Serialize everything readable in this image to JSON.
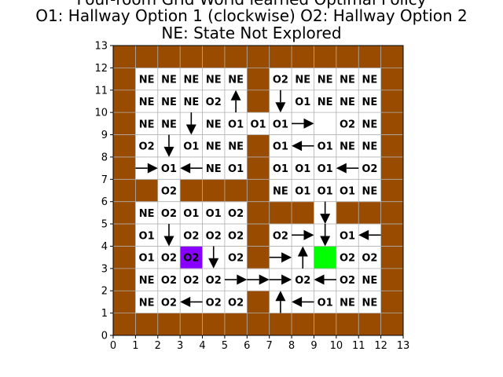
{
  "title_lines": [
    "Four-room Grid World learned Optimal Policy",
    "O1: Hallway Option 1 (clockwise) O2: Hallway Option 2",
    "NE: State Not Explored"
  ],
  "chart_data": {
    "type": "heatmap",
    "xlim": [
      0,
      13
    ],
    "ylim": [
      0,
      13
    ],
    "xticks": [
      "0",
      "1",
      "2",
      "3",
      "4",
      "5",
      "6",
      "7",
      "8",
      "9",
      "10",
      "11",
      "12",
      "13"
    ],
    "yticks": [
      "0",
      "1",
      "2",
      "3",
      "4",
      "5",
      "6",
      "7",
      "8",
      "9",
      "10",
      "11",
      "12",
      "13"
    ],
    "colors": {
      "wall": "#994c00",
      "agent": "#8800ff",
      "goal": "#00ff00",
      "grid": "#b0b0b0",
      "open": "#ffffff"
    },
    "walls": [
      [
        0,
        12
      ],
      [
        1,
        12
      ],
      [
        2,
        12
      ],
      [
        3,
        12
      ],
      [
        4,
        12
      ],
      [
        5,
        12
      ],
      [
        6,
        12
      ],
      [
        7,
        12
      ],
      [
        8,
        12
      ],
      [
        9,
        12
      ],
      [
        10,
        12
      ],
      [
        11,
        12
      ],
      [
        12,
        12
      ],
      [
        0,
        0
      ],
      [
        1,
        0
      ],
      [
        2,
        0
      ],
      [
        3,
        0
      ],
      [
        4,
        0
      ],
      [
        5,
        0
      ],
      [
        6,
        0
      ],
      [
        7,
        0
      ],
      [
        8,
        0
      ],
      [
        9,
        0
      ],
      [
        10,
        0
      ],
      [
        11,
        0
      ],
      [
        12,
        0
      ],
      [
        0,
        1
      ],
      [
        0,
        2
      ],
      [
        0,
        3
      ],
      [
        0,
        4
      ],
      [
        0,
        5
      ],
      [
        0,
        6
      ],
      [
        0,
        7
      ],
      [
        0,
        8
      ],
      [
        0,
        9
      ],
      [
        0,
        10
      ],
      [
        0,
        11
      ],
      [
        12,
        1
      ],
      [
        12,
        2
      ],
      [
        12,
        3
      ],
      [
        12,
        4
      ],
      [
        12,
        5
      ],
      [
        12,
        6
      ],
      [
        12,
        7
      ],
      [
        12,
        8
      ],
      [
        12,
        9
      ],
      [
        12,
        10
      ],
      [
        12,
        11
      ],
      [
        6,
        11
      ],
      [
        6,
        10
      ],
      [
        6,
        8
      ],
      [
        6,
        7
      ],
      [
        6,
        6
      ],
      [
        6,
        5
      ],
      [
        6,
        4
      ],
      [
        6,
        3
      ],
      [
        6,
        1
      ],
      [
        1,
        6
      ],
      [
        3,
        6
      ],
      [
        4,
        6
      ],
      [
        5,
        6
      ],
      [
        7,
        5
      ],
      [
        8,
        5
      ],
      [
        10,
        5
      ],
      [
        11,
        5
      ]
    ],
    "agent": [
      3,
      3
    ],
    "goal": [
      9,
      3
    ],
    "labels": [
      {
        "c": 1,
        "r": 11,
        "t": "NE"
      },
      {
        "c": 2,
        "r": 11,
        "t": "NE"
      },
      {
        "c": 3,
        "r": 11,
        "t": "NE"
      },
      {
        "c": 4,
        "r": 11,
        "t": "NE"
      },
      {
        "c": 5,
        "r": 11,
        "t": "NE"
      },
      {
        "c": 7,
        "r": 11,
        "t": "O2"
      },
      {
        "c": 8,
        "r": 11,
        "t": "NE"
      },
      {
        "c": 9,
        "r": 11,
        "t": "NE"
      },
      {
        "c": 10,
        "r": 11,
        "t": "NE"
      },
      {
        "c": 11,
        "r": 11,
        "t": "NE"
      },
      {
        "c": 1,
        "r": 10,
        "t": "NE"
      },
      {
        "c": 2,
        "r": 10,
        "t": "NE"
      },
      {
        "c": 3,
        "r": 10,
        "t": "NE"
      },
      {
        "c": 4,
        "r": 10,
        "t": "O2"
      },
      {
        "c": 8,
        "r": 10,
        "t": "O1"
      },
      {
        "c": 9,
        "r": 10,
        "t": "NE"
      },
      {
        "c": 10,
        "r": 10,
        "t": "NE"
      },
      {
        "c": 11,
        "r": 10,
        "t": "NE"
      },
      {
        "c": 1,
        "r": 9,
        "t": "NE"
      },
      {
        "c": 2,
        "r": 9,
        "t": "NE"
      },
      {
        "c": 4,
        "r": 9,
        "t": "NE"
      },
      {
        "c": 5,
        "r": 9,
        "t": "O1"
      },
      {
        "c": 6,
        "r": 9,
        "t": "O1"
      },
      {
        "c": 7,
        "r": 9,
        "t": "O1"
      },
      {
        "c": 10,
        "r": 9,
        "t": "O2"
      },
      {
        "c": 11,
        "r": 9,
        "t": "NE"
      },
      {
        "c": 1,
        "r": 8,
        "t": "O2"
      },
      {
        "c": 3,
        "r": 8,
        "t": "O1"
      },
      {
        "c": 4,
        "r": 8,
        "t": "NE"
      },
      {
        "c": 5,
        "r": 8,
        "t": "NE"
      },
      {
        "c": 7,
        "r": 8,
        "t": "O1"
      },
      {
        "c": 9,
        "r": 8,
        "t": "O1"
      },
      {
        "c": 10,
        "r": 8,
        "t": "NE"
      },
      {
        "c": 11,
        "r": 8,
        "t": "NE"
      },
      {
        "c": 2,
        "r": 7,
        "t": "O1"
      },
      {
        "c": 4,
        "r": 7,
        "t": "NE"
      },
      {
        "c": 5,
        "r": 7,
        "t": "O1"
      },
      {
        "c": 7,
        "r": 7,
        "t": "O1"
      },
      {
        "c": 8,
        "r": 7,
        "t": "O1"
      },
      {
        "c": 9,
        "r": 7,
        "t": "O1"
      },
      {
        "c": 11,
        "r": 7,
        "t": "O2"
      },
      {
        "c": 2,
        "r": 6,
        "t": "O2"
      },
      {
        "c": 7,
        "r": 6,
        "t": "NE"
      },
      {
        "c": 8,
        "r": 6,
        "t": "O1"
      },
      {
        "c": 9,
        "r": 6,
        "t": "O1"
      },
      {
        "c": 10,
        "r": 6,
        "t": "O1"
      },
      {
        "c": 11,
        "r": 6,
        "t": "NE"
      },
      {
        "c": 1,
        "r": 5,
        "t": "NE"
      },
      {
        "c": 2,
        "r": 5,
        "t": "O2"
      },
      {
        "c": 3,
        "r": 5,
        "t": "O1"
      },
      {
        "c": 4,
        "r": 5,
        "t": "O1"
      },
      {
        "c": 5,
        "r": 5,
        "t": "O2"
      },
      {
        "c": 1,
        "r": 4,
        "t": "O1"
      },
      {
        "c": 3,
        "r": 4,
        "t": "O2"
      },
      {
        "c": 4,
        "r": 4,
        "t": "O2"
      },
      {
        "c": 5,
        "r": 4,
        "t": "O2"
      },
      {
        "c": 7,
        "r": 4,
        "t": "O2"
      },
      {
        "c": 10,
        "r": 4,
        "t": "O1"
      },
      {
        "c": 1,
        "r": 3,
        "t": "O1"
      },
      {
        "c": 2,
        "r": 3,
        "t": "O2"
      },
      {
        "c": 3,
        "r": 3,
        "t": "O2"
      },
      {
        "c": 5,
        "r": 3,
        "t": "O2"
      },
      {
        "c": 10,
        "r": 3,
        "t": "O2"
      },
      {
        "c": 11,
        "r": 3,
        "t": "O2"
      },
      {
        "c": 1,
        "r": 2,
        "t": "NE"
      },
      {
        "c": 2,
        "r": 2,
        "t": "O2"
      },
      {
        "c": 3,
        "r": 2,
        "t": "O2"
      },
      {
        "c": 4,
        "r": 2,
        "t": "O2"
      },
      {
        "c": 8,
        "r": 2,
        "t": "O2"
      },
      {
        "c": 10,
        "r": 2,
        "t": "O2"
      },
      {
        "c": 11,
        "r": 2,
        "t": "NE"
      },
      {
        "c": 1,
        "r": 1,
        "t": "NE"
      },
      {
        "c": 2,
        "r": 1,
        "t": "O2"
      },
      {
        "c": 4,
        "r": 1,
        "t": "O2"
      },
      {
        "c": 5,
        "r": 1,
        "t": "O2"
      },
      {
        "c": 9,
        "r": 1,
        "t": "O1"
      },
      {
        "c": 10,
        "r": 1,
        "t": "NE"
      },
      {
        "c": 11,
        "r": 1,
        "t": "NE"
      }
    ],
    "arrows": [
      {
        "c": 5,
        "r": 10,
        "d": "up"
      },
      {
        "c": 7,
        "r": 10,
        "d": "down"
      },
      {
        "c": 3,
        "r": 9,
        "d": "down"
      },
      {
        "c": 8,
        "r": 9,
        "d": "right"
      },
      {
        "c": 2,
        "r": 8,
        "d": "down"
      },
      {
        "c": 8,
        "r": 8,
        "d": "left"
      },
      {
        "c": 1,
        "r": 7,
        "d": "right"
      },
      {
        "c": 3,
        "r": 7,
        "d": "left"
      },
      {
        "c": 10,
        "r": 7,
        "d": "left"
      },
      {
        "c": 9,
        "r": 5,
        "d": "down"
      },
      {
        "c": 2,
        "r": 4,
        "d": "down"
      },
      {
        "c": 8,
        "r": 4,
        "d": "right"
      },
      {
        "c": 9,
        "r": 4,
        "d": "down"
      },
      {
        "c": 11,
        "r": 4,
        "d": "left"
      },
      {
        "c": 4,
        "r": 3,
        "d": "down"
      },
      {
        "c": 7,
        "r": 3,
        "d": "right"
      },
      {
        "c": 8,
        "r": 3,
        "d": "up"
      },
      {
        "c": 5,
        "r": 2,
        "d": "right"
      },
      {
        "c": 6,
        "r": 2,
        "d": "right"
      },
      {
        "c": 7,
        "r": 2,
        "d": "right"
      },
      {
        "c": 9,
        "r": 2,
        "d": "left"
      },
      {
        "c": 3,
        "r": 1,
        "d": "left"
      },
      {
        "c": 7,
        "r": 1,
        "d": "up"
      },
      {
        "c": 8,
        "r": 1,
        "d": "left"
      }
    ]
  }
}
